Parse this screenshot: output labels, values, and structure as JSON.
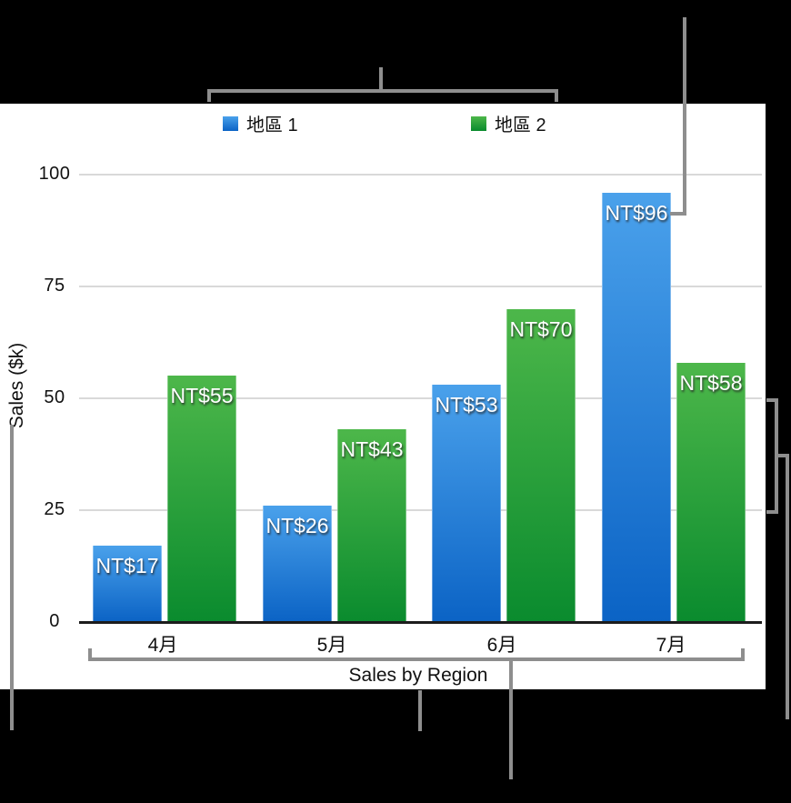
{
  "figure": {
    "background": "#000000",
    "panel_background": "#ffffff",
    "callout_color": "#8e8e8e",
    "gridline_color": "#d9d9d9"
  },
  "legend": {
    "items": [
      {
        "label": "地區 1",
        "color_top": "#4aa1eb",
        "color_bottom": "#0b63c5"
      },
      {
        "label": "地區 2",
        "color_top": "#4db74a",
        "color_bottom": "#0a8b2e"
      }
    ]
  },
  "y_axis": {
    "title": "Sales ($k)"
  },
  "x_axis": {
    "title": "Sales by Region"
  },
  "chart_data": {
    "type": "bar",
    "title": "Sales by Region",
    "xlabel": "Sales by Region",
    "ylabel": "Sales ($k)",
    "categories": [
      "4月",
      "5月",
      "6月",
      "7月"
    ],
    "series": [
      {
        "name": "地區 1",
        "values": [
          17,
          26,
          53,
          96
        ],
        "value_labels": [
          "NT$17",
          "NT$26",
          "NT$53",
          "NT$96"
        ],
        "color_top": "#4aa1eb",
        "color_bottom": "#0b63c5"
      },
      {
        "name": "地區 2",
        "values": [
          55,
          43,
          70,
          58
        ],
        "value_labels": [
          "NT$55",
          "NT$43",
          "NT$70",
          "NT$58"
        ],
        "color_top": "#4db74a",
        "color_bottom": "#0a8b2e"
      }
    ],
    "yticks": [
      0,
      25,
      50,
      75,
      100
    ],
    "ylim": [
      0,
      105
    ],
    "grid": true,
    "legend_position": "top",
    "currency_prefix": "NT$"
  }
}
